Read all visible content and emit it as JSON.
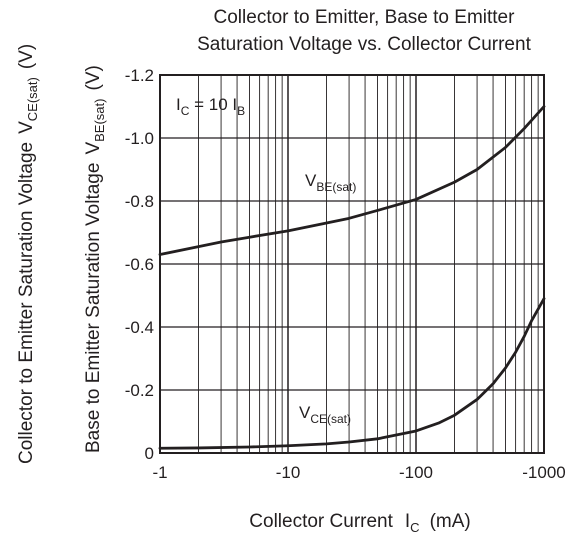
{
  "chart_data": {
    "type": "line",
    "title": [
      "Collector to Emitter, Base to Emitter",
      "Saturation Voltage vs. Collector Current"
    ],
    "xlabel": {
      "text": "Collector Current",
      "symbol": "I",
      "sub": "C",
      "unit": "(mA)"
    },
    "ylabel_outer": {
      "text": "Collector to Emitter Saturation Voltage",
      "symbol": "V",
      "sub": "CE(sat)",
      "unit": "(V)"
    },
    "ylabel_inner": {
      "text": "Base to Emitter Saturation Voltage",
      "symbol": "V",
      "sub": "BE(sat)",
      "unit": "(V)"
    },
    "x_scale": "log",
    "xlim": [
      -1,
      -1000
    ],
    "ylim": [
      0,
      -1.2
    ],
    "x_ticks": [
      "-1",
      "-10",
      "-100",
      "-1000"
    ],
    "y_ticks": [
      "0",
      "-0.2",
      "-0.4",
      "-0.6",
      "-0.8",
      "-1.0",
      "-1.2"
    ],
    "grid": true,
    "condition": {
      "symbol": "I",
      "sub": "C",
      "middle": " = 10 I",
      "sub2": "B"
    },
    "series": [
      {
        "name": "V",
        "name_sub": "BE(sat)",
        "color": "#231f20",
        "x": [
          -1,
          -2,
          -3,
          -5,
          -10,
          -20,
          -30,
          -50,
          -100,
          -200,
          -300,
          -500,
          -700,
          -1000
        ],
        "y": [
          -0.63,
          -0.655,
          -0.67,
          -0.685,
          -0.705,
          -0.73,
          -0.745,
          -0.77,
          -0.805,
          -0.86,
          -0.9,
          -0.97,
          -1.03,
          -1.1
        ]
      },
      {
        "name": "V",
        "name_sub": "CE(sat)",
        "color": "#231f20",
        "x": [
          -1,
          -2,
          -5,
          -10,
          -20,
          -30,
          -50,
          -100,
          -150,
          -200,
          -300,
          -400,
          -500,
          -600,
          -700,
          -800,
          -1000
        ],
        "y": [
          -0.015,
          -0.016,
          -0.019,
          -0.023,
          -0.029,
          -0.035,
          -0.045,
          -0.07,
          -0.095,
          -0.12,
          -0.17,
          -0.22,
          -0.27,
          -0.32,
          -0.37,
          -0.42,
          -0.49
        ]
      }
    ]
  }
}
